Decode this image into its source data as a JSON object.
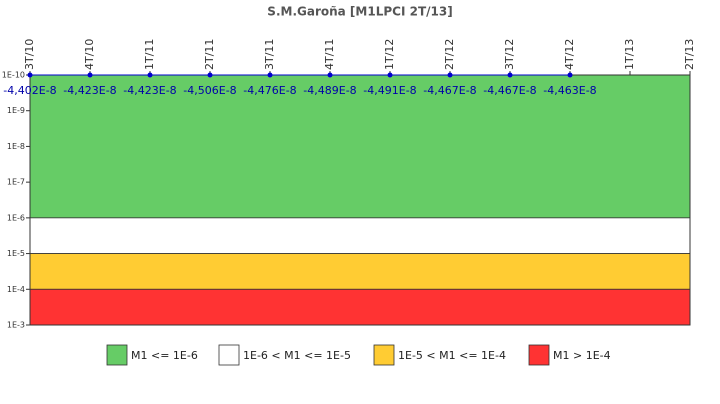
{
  "chart_data": {
    "type": "line",
    "title": "S.M.Garoña [M1LPCI 2T/13]",
    "categories": [
      "3T/10",
      "4T/10",
      "1T/11",
      "2T/11",
      "3T/11",
      "4T/11",
      "1T/12",
      "2T/12",
      "3T/12",
      "4T/12",
      "1T/13",
      "2T/13"
    ],
    "series": [
      {
        "color": "#0000cc",
        "values": [
          -4.402e-08,
          -4.423e-08,
          -4.423e-08,
          -4.506e-08,
          -4.476e-08,
          -4.489e-08,
          -4.491e-08,
          -4.467e-08,
          -4.467e-08,
          -4.463e-08,
          null,
          null
        ],
        "value_labels": [
          "-4,402E-8",
          "-4,423E-8",
          "-4,423E-8",
          "-4,506E-8",
          "-4,476E-8",
          "-4,489E-8",
          "-4,491E-8",
          "-4,467E-8",
          "-4,467E-8",
          "-4,463E-8",
          null,
          null
        ]
      }
    ],
    "log_scale": true,
    "y_inverted": true,
    "ylim": [
      1e-10,
      0.001
    ],
    "yticks": [
      {
        "value": 1e-10,
        "label": "1E-10"
      },
      {
        "value": 1e-09,
        "label": "1E-9"
      },
      {
        "value": 1e-08,
        "label": "1E-8"
      },
      {
        "value": 1e-07,
        "label": "1E-7"
      },
      {
        "value": 1e-06,
        "label": "1E-6"
      },
      {
        "value": 1e-05,
        "label": "1E-5"
      },
      {
        "value": 0.0001,
        "label": "1E-4"
      },
      {
        "value": 0.001,
        "label": "1E-3"
      }
    ],
    "bands": [
      {
        "label": "M1 <= 1E-6",
        "from": 1e-10,
        "to": 1e-06,
        "color": "#66cc66"
      },
      {
        "label": "1E-6 < M1 <= 1E-5",
        "from": 1e-06,
        "to": 1e-05,
        "color": "#ffffff"
      },
      {
        "label": "1E-5 < M1 <= 1E-4",
        "from": 1e-05,
        "to": 0.0001,
        "color": "#ffcc33"
      },
      {
        "label": "M1 > 1E-4",
        "from": 0.0001,
        "to": 0.001,
        "color": "#ff3333"
      }
    ]
  }
}
